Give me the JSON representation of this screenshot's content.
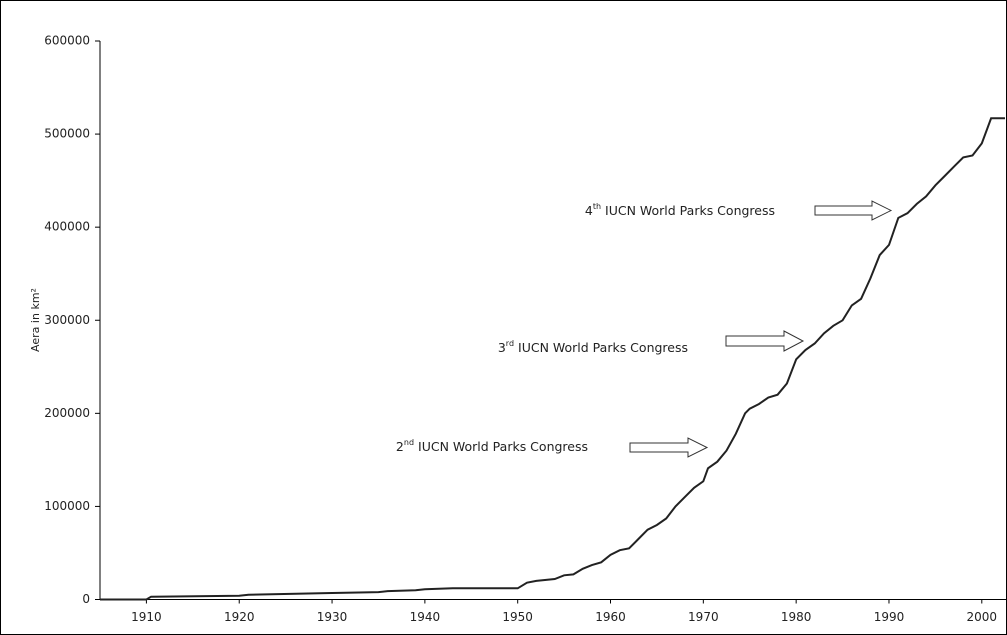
{
  "chart_data": {
    "type": "line",
    "y_label": "Aera in km²",
    "x": [
      1905,
      1910,
      1910.5,
      1920,
      1921,
      1930,
      1935,
      1936,
      1939,
      1940,
      1943,
      1950,
      1951,
      1952,
      1954,
      1955,
      1956,
      1957,
      1958,
      1959,
      1960,
      1961,
      1962,
      1963,
      1964,
      1965,
      1966,
      1967,
      1968,
      1969,
      1970,
      1970.5,
      1971.5,
      1972.5,
      1973.5,
      1974.5,
      1975,
      1976,
      1977,
      1978,
      1979,
      1980,
      1981,
      1982,
      1983,
      1984,
      1985,
      1986,
      1987,
      1988,
      1989,
      1990,
      1991,
      1992,
      1993,
      1994,
      1995,
      1996,
      1997,
      1998,
      1999,
      2000,
      2001,
      2002.5
    ],
    "values": [
      0,
      0,
      3000,
      4000,
      5000,
      7000,
      8000,
      9000,
      10000,
      11000,
      12000,
      12000,
      18000,
      20000,
      22000,
      26000,
      27000,
      33000,
      37000,
      40000,
      48000,
      53000,
      55000,
      65000,
      75000,
      80000,
      87000,
      100000,
      110000,
      120000,
      127000,
      141000,
      148000,
      160000,
      178000,
      200000,
      205000,
      210000,
      217000,
      220000,
      232000,
      258000,
      268000,
      275000,
      286000,
      294000,
      300000,
      316000,
      323000,
      345000,
      370000,
      381000,
      410000,
      415000,
      425000,
      433000,
      445000,
      455000,
      465000,
      475000,
      477000,
      490000,
      517000,
      517000
    ],
    "color": "#222222",
    "xlim": [
      1905,
      2002.5
    ],
    "xticks": [
      1910,
      1920,
      1930,
      1940,
      1950,
      1960,
      1970,
      1980,
      1990,
      2000
    ],
    "ylim": [
      0,
      600000
    ],
    "yticks": [
      0,
      100000,
      200000,
      300000,
      400000,
      500000,
      600000
    ],
    "annotations": [
      {
        "number": "2",
        "suffix": "nd",
        "text": " IUCN World Parks Congress"
      },
      {
        "number": "3",
        "suffix": "rd",
        "text": " IUCN World Parks Congress"
      },
      {
        "number": "4",
        "suffix": "th",
        "text": " IUCN World Parks Congress"
      }
    ]
  }
}
